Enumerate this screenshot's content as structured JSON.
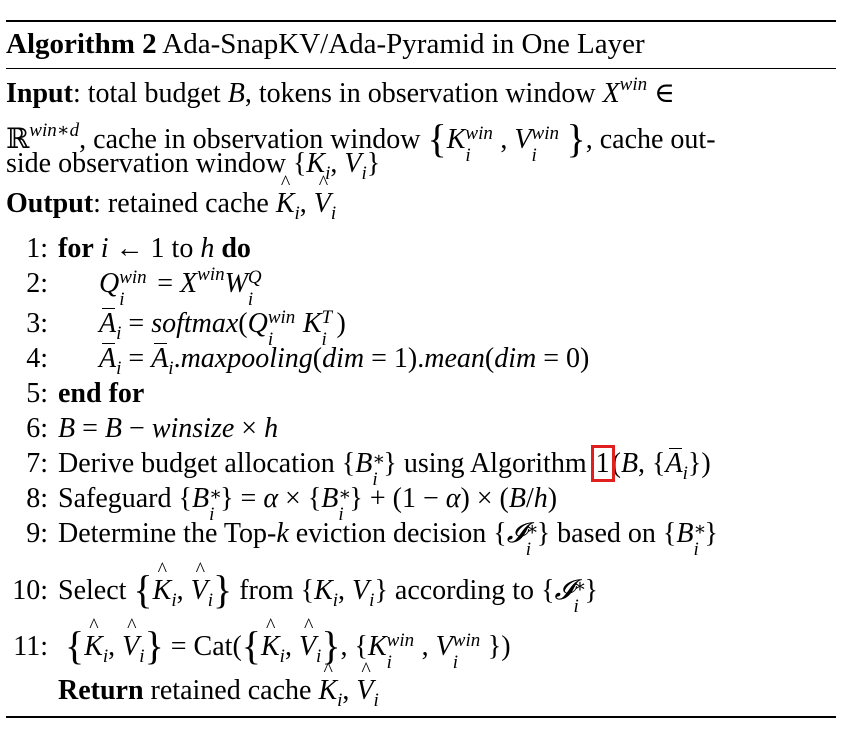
{
  "header": {
    "title_bold": "Algorithm 2",
    "title_text": "Ada-SnapKV/Ada-Pyramid in One Layer"
  },
  "io": {
    "input_label": "Input",
    "input_text_1": ": total budget",
    "input_text_2": ", tokens in observation window",
    "input_text_3": ", cache in observation window",
    "input_text_4": ", cache out-",
    "input_text_5": "side observation window",
    "output_label": "Output",
    "output_text": ": retained cache"
  },
  "steps": [
    {
      "num": "1:",
      "kw": "for",
      "text": "i ← 1 to h",
      "kw2": "do"
    },
    {
      "num": "2:",
      "text": "Q = X W"
    },
    {
      "num": "3:",
      "text": "= softmax(Q K )"
    },
    {
      "num": "4:",
      "text": "= .maxpooling(dim = 1).mean(dim = 0)"
    },
    {
      "num": "5:",
      "kw": "end for"
    },
    {
      "num": "6:",
      "text": "B = B − winsize × h"
    },
    {
      "num": "7:",
      "text_a": "Derive budget allocation",
      "text_b": "using Algorithm",
      "ref": "1"
    },
    {
      "num": "8:",
      "text": "Safeguard"
    },
    {
      "num": "9:",
      "text_a": "Determine the Top-",
      "text_b": "eviction decision",
      "text_c": "based on"
    },
    {
      "num": "10:",
      "text_a": "Select",
      "text_b": "from",
      "text_c": "according to"
    },
    {
      "num": "11:",
      "text": "= Cat("
    }
  ],
  "return": {
    "kw": "Return",
    "text": "retained cache"
  }
}
